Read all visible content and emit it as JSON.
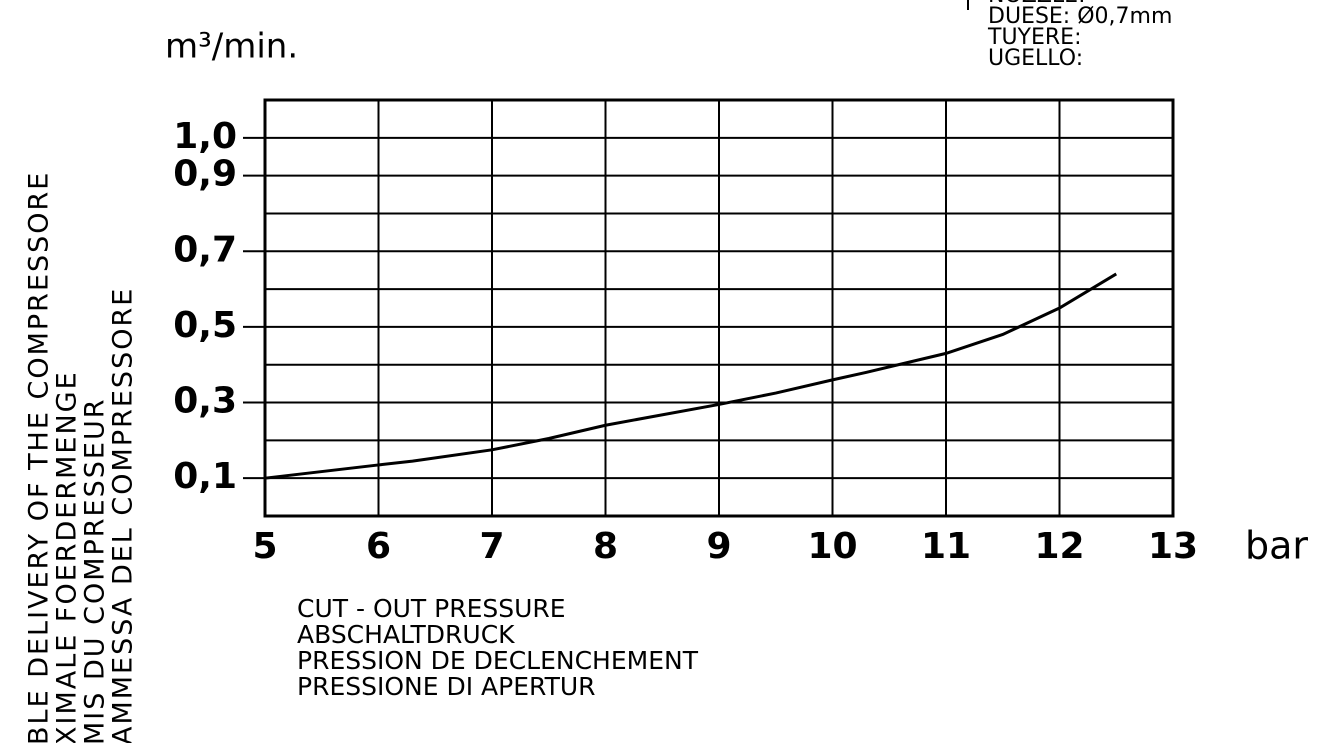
{
  "chart_data": {
    "type": "line",
    "y_unit": "m³/min.",
    "x_unit": "bar",
    "y_label_lines": [
      "BLE DELIVERY OF THE COMPRESSORE",
      "XIMALE FOERDERMENGE",
      "MIS DU COMPRESSEUR",
      "AMMESSA DEL COMPRESSORE"
    ],
    "x_label_lines": [
      "CUT - OUT PRESSURE",
      "ABSCHALTDRUCK",
      "PRESSION DE DECLENCHEMENT",
      "PRESSIONE DI APERTUR"
    ],
    "nozzle_lines": [
      "NOZZLE:",
      "DUESE: Ø0,7mm",
      "TUYERE:",
      "UGELLO:"
    ],
    "x": [
      5,
      6,
      6.3,
      7,
      7.5,
      8,
      9,
      9.5,
      10,
      10.3,
      11,
      11.5,
      12,
      12.5
    ],
    "values": [
      0.1,
      0.135,
      0.145,
      0.175,
      0.205,
      0.24,
      0.295,
      0.325,
      0.36,
      0.38,
      0.43,
      0.48,
      0.55,
      0.64
    ],
    "color": "#000000",
    "xlim": [
      5,
      13
    ],
    "xticks": [
      5,
      6,
      7,
      8,
      9,
      10,
      11,
      12,
      13
    ],
    "ylim": [
      0,
      1.1
    ],
    "yticks": [
      {
        "value": 0.1,
        "label": "0,1"
      },
      {
        "value": 0.3,
        "label": "0,3"
      },
      {
        "value": 0.5,
        "label": "0,5"
      },
      {
        "value": 0.7,
        "label": "0,7"
      },
      {
        "value": 0.9,
        "label": "0,9"
      },
      {
        "value": 1.0,
        "label": "1,0"
      }
    ],
    "ygrid": [
      0.1,
      0.2,
      0.3,
      0.4,
      0.5,
      0.6,
      0.7,
      0.8,
      0.9,
      1.0
    ],
    "grid": true
  }
}
